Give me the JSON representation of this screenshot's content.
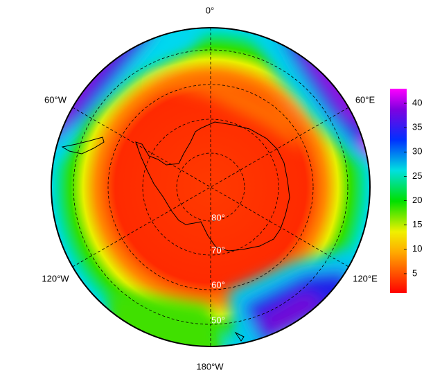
{
  "map": {
    "longitude_labels": [
      "0°",
      "60°W",
      "60°E",
      "120°W",
      "120°E",
      "180°W"
    ],
    "latitude_labels": [
      "80°",
      "70°",
      "60°",
      "50°"
    ]
  },
  "colorbar": {
    "range": [
      1,
      43
    ],
    "ticks": [
      5,
      10,
      15,
      20,
      25,
      30,
      35,
      40
    ]
  }
}
